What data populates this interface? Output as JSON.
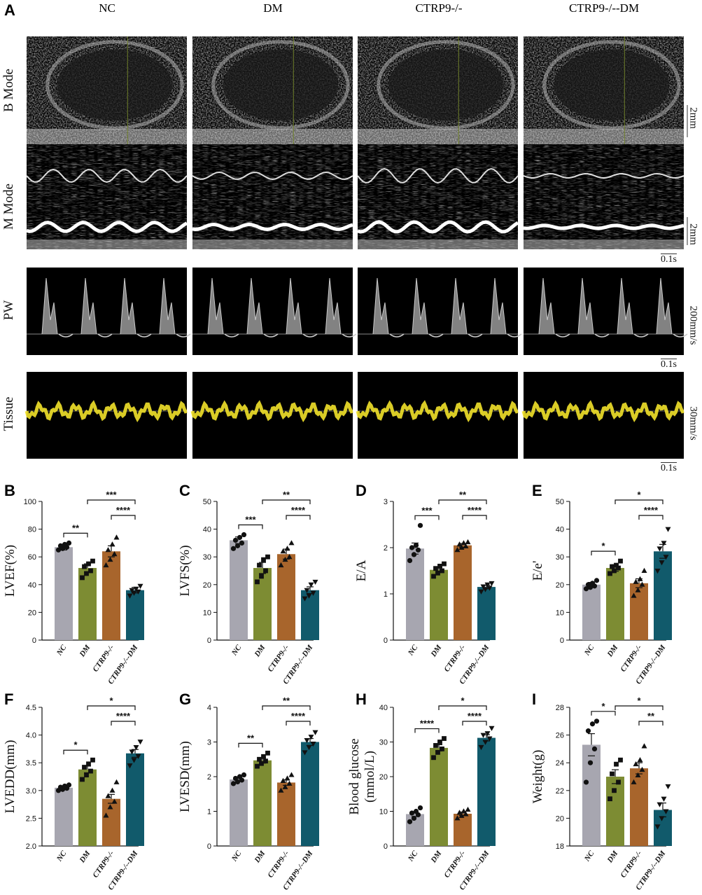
{
  "panel_letters": [
    "A",
    "B",
    "C",
    "D",
    "E",
    "F",
    "G",
    "H",
    "I"
  ],
  "ultrasound": {
    "columns": [
      "NC",
      "DM",
      "CTRP9-/-",
      "CTRP9-/--DM"
    ],
    "rows": [
      "B Mode",
      "M Mode",
      "PW",
      "Tissue"
    ],
    "scale_labels": [
      "2mm",
      "2mm",
      "200mm/s",
      "30mm/s"
    ],
    "time_label": "0.1s"
  },
  "colors": {
    "NC": "#a7a6b0",
    "DM": "#7d8c33",
    "CTRP9-/-": "#a8652c",
    "CTRP9-/--DM": "#115a6b",
    "tissue_trace": "#f2e22a"
  },
  "chart_data": [
    {
      "panel": "B",
      "type": "bar",
      "ylabel": "LVEF(%)",
      "ylim": [
        0,
        100
      ],
      "yticks": [
        0,
        20,
        40,
        60,
        80,
        100
      ],
      "categories": [
        "NC",
        "DM",
        "CTRP9-/-",
        "CTRP9-/--DM"
      ],
      "values": [
        67,
        52,
        64,
        36
      ],
      "errors": [
        2,
        3,
        4,
        2
      ],
      "points": [
        [
          65,
          66,
          67,
          68,
          69,
          70
        ],
        [
          45,
          48,
          50,
          53,
          55,
          57
        ],
        [
          54,
          58,
          62,
          65,
          69,
          74
        ],
        [
          32,
          34,
          35,
          36,
          37,
          39
        ]
      ],
      "comparisons": [
        {
          "from": 0,
          "to": 1,
          "label": "**"
        },
        {
          "from": 1,
          "to": 3,
          "label": "***"
        },
        {
          "from": 2,
          "to": 3,
          "label": "****"
        }
      ]
    },
    {
      "panel": "C",
      "type": "bar",
      "ylabel": "LVFS(%)",
      "ylim": [
        0,
        50
      ],
      "yticks": [
        0,
        10,
        20,
        30,
        40,
        50
      ],
      "categories": [
        "NC",
        "DM",
        "CTRP9-/-",
        "CTRP9-/--DM"
      ],
      "values": [
        36,
        26,
        31,
        18
      ],
      "errors": [
        1.2,
        2,
        1.8,
        1.2
      ],
      "points": [
        [
          33,
          34,
          35,
          36,
          37,
          38
        ],
        [
          21,
          23,
          25,
          27,
          29,
          30
        ],
        [
          27,
          29,
          30,
          32,
          33,
          35
        ],
        [
          15,
          16,
          17,
          18,
          20,
          21
        ]
      ],
      "comparisons": [
        {
          "from": 0,
          "to": 1,
          "label": "***"
        },
        {
          "from": 1,
          "to": 3,
          "label": "**"
        },
        {
          "from": 2,
          "to": 3,
          "label": "****"
        }
      ]
    },
    {
      "panel": "D",
      "type": "bar",
      "ylabel": "E/A",
      "ylim": [
        0,
        3
      ],
      "yticks": [
        0,
        1,
        2,
        3
      ],
      "categories": [
        "NC",
        "DM",
        "CTRP9-/-",
        "CTRP9-/--DM"
      ],
      "values": [
        1.98,
        1.52,
        2.05,
        1.15
      ],
      "errors": [
        0.12,
        0.05,
        0.04,
        0.04
      ],
      "points": [
        [
          1.72,
          1.85,
          1.95,
          2.0,
          2.05,
          2.48
        ],
        [
          1.38,
          1.45,
          1.5,
          1.55,
          1.6,
          1.65
        ],
        [
          1.95,
          2.0,
          2.03,
          2.07,
          2.1,
          2.12
        ],
        [
          1.05,
          1.1,
          1.13,
          1.16,
          1.2,
          1.23
        ]
      ],
      "comparisons": [
        {
          "from": 0,
          "to": 1,
          "label": "***"
        },
        {
          "from": 1,
          "to": 3,
          "label": "**"
        },
        {
          "from": 2,
          "to": 3,
          "label": "****"
        }
      ]
    },
    {
      "panel": "E",
      "type": "bar",
      "ylabel": "E/e'",
      "ylim": [
        0,
        50
      ],
      "yticks": [
        0,
        10,
        20,
        30,
        40,
        50
      ],
      "categories": [
        "NC",
        "DM",
        "CTRP9-/-",
        "CTRP9-/--DM"
      ],
      "values": [
        20,
        26,
        20.5,
        32
      ],
      "errors": [
        0.8,
        1.2,
        1.6,
        2.5
      ],
      "points": [
        [
          18.5,
          19,
          19.5,
          20,
          20.5,
          21.5
        ],
        [
          24,
          25,
          26,
          26.5,
          27,
          28.5
        ],
        [
          16,
          18,
          20,
          21,
          22,
          25
        ],
        [
          25,
          28,
          30,
          33,
          35,
          40
        ]
      ],
      "comparisons": [
        {
          "from": 0,
          "to": 1,
          "label": "*"
        },
        {
          "from": 1,
          "to": 3,
          "label": "*"
        },
        {
          "from": 2,
          "to": 3,
          "label": "****"
        }
      ]
    },
    {
      "panel": "F",
      "type": "bar",
      "ylabel": "LVEDD(mm)",
      "ylim": [
        2.0,
        4.5
      ],
      "yticks": [
        2.0,
        2.5,
        3.0,
        3.5,
        4.0,
        4.5
      ],
      "categories": [
        "NC",
        "DM",
        "CTRP9-/-",
        "CTRP9-/--DM"
      ],
      "values": [
        3.05,
        3.38,
        2.85,
        3.67
      ],
      "errors": [
        0.03,
        0.06,
        0.08,
        0.07
      ],
      "points": [
        [
          3.0,
          3.02,
          3.04,
          3.06,
          3.08,
          3.1
        ],
        [
          3.2,
          3.28,
          3.35,
          3.42,
          3.48,
          3.55
        ],
        [
          2.55,
          2.7,
          2.8,
          2.9,
          3.0,
          3.15
        ],
        [
          3.45,
          3.55,
          3.62,
          3.7,
          3.78,
          3.88
        ]
      ],
      "comparisons": [
        {
          "from": 0,
          "to": 1,
          "label": "*"
        },
        {
          "from": 1,
          "to": 3,
          "label": "*"
        },
        {
          "from": 2,
          "to": 3,
          "label": "****"
        }
      ]
    },
    {
      "panel": "G",
      "type": "bar",
      "ylabel": "LVESD(mm)",
      "ylim": [
        0,
        4
      ],
      "yticks": [
        0,
        1,
        2,
        3,
        4
      ],
      "categories": [
        "NC",
        "DM",
        "CTRP9-/-",
        "CTRP9-/--DM"
      ],
      "values": [
        1.92,
        2.47,
        1.83,
        3.0
      ],
      "errors": [
        0.05,
        0.08,
        0.08,
        0.1
      ],
      "points": [
        [
          1.8,
          1.85,
          1.9,
          1.95,
          2.0,
          2.05
        ],
        [
          2.3,
          2.38,
          2.45,
          2.5,
          2.58,
          2.68
        ],
        [
          1.6,
          1.7,
          1.8,
          1.88,
          1.95,
          2.05
        ],
        [
          2.7,
          2.85,
          2.95,
          3.05,
          3.15,
          3.28
        ]
      ],
      "comparisons": [
        {
          "from": 0,
          "to": 1,
          "label": "**"
        },
        {
          "from": 1,
          "to": 3,
          "label": "**"
        },
        {
          "from": 2,
          "to": 3,
          "label": "****"
        }
      ]
    },
    {
      "panel": "H",
      "type": "bar",
      "ylabel": "Blood glucose",
      "ylabel2": "(mmol/L)",
      "ylim": [
        0,
        40
      ],
      "yticks": [
        0,
        10,
        20,
        30,
        40
      ],
      "categories": [
        "NC",
        "DM",
        "CTRP9-/-",
        "CTRP9-/--DM"
      ],
      "values": [
        9.2,
        28.3,
        9.3,
        31.2
      ],
      "errors": [
        0.7,
        0.9,
        0.5,
        0.9
      ],
      "points": [
        [
          7,
          8,
          9,
          9.5,
          10,
          11
        ],
        [
          25.5,
          27,
          28,
          29,
          30,
          31
        ],
        [
          8,
          8.7,
          9.2,
          9.6,
          10,
          10.5
        ],
        [
          28.5,
          30,
          31,
          32,
          32.5,
          34
        ]
      ],
      "comparisons": [
        {
          "from": 0,
          "to": 1,
          "label": "****"
        },
        {
          "from": 1,
          "to": 3,
          "label": "*"
        },
        {
          "from": 2,
          "to": 3,
          "label": "****"
        }
      ]
    },
    {
      "panel": "I",
      "type": "bar",
      "ylabel": "Weight(g)",
      "ylim": [
        18,
        28
      ],
      "yticks": [
        18,
        20,
        22,
        24,
        26,
        28
      ],
      "categories": [
        "NC",
        "DM",
        "CTRP9-/-",
        "CTRP9-/--DM"
      ],
      "values": [
        25.3,
        23.0,
        23.6,
        20.6
      ],
      "errors": [
        0.8,
        0.5,
        0.4,
        0.5
      ],
      "points": [
        [
          22.6,
          24.0,
          25.0,
          26.3,
          26.8,
          27.0
        ],
        [
          21.4,
          22.0,
          22.6,
          23.2,
          23.9,
          24.2
        ],
        [
          22.6,
          23.1,
          23.5,
          23.9,
          24.2,
          25.2
        ],
        [
          19.4,
          20.0,
          20.5,
          21.0,
          21.4,
          22.3
        ]
      ],
      "comparisons": [
        {
          "from": 0,
          "to": 1,
          "label": "*"
        },
        {
          "from": 1,
          "to": 3,
          "label": "*"
        },
        {
          "from": 2,
          "to": 3,
          "label": "**"
        }
      ]
    }
  ]
}
